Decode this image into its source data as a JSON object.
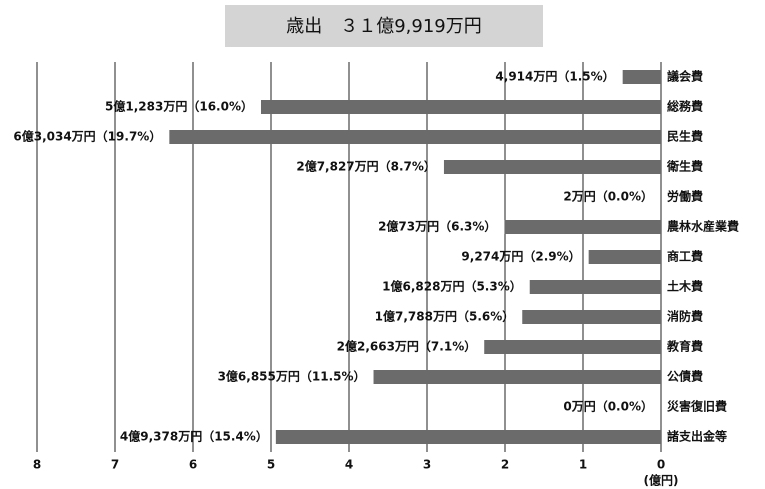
{
  "chart_data": {
    "type": "bar",
    "orientation": "horizontal",
    "title": "歳出　３１億9,919万円",
    "x_label": "(億円)",
    "categories": [
      "議会費",
      "総務費",
      "民生費",
      "衛生費",
      "労働費",
      "農林水産業費",
      "商工費",
      "土木費",
      "消防費",
      "教育費",
      "公債費",
      "災害復旧費",
      "諸支出金等"
    ],
    "values": [
      0.4914,
      5.1283,
      6.3034,
      2.7827,
      0.0002,
      2.0073,
      0.9274,
      1.6828,
      1.7788,
      2.2663,
      3.6855,
      0,
      4.9378
    ],
    "value_labels": [
      "4,914万円（1.5%）",
      "5億1,283万円（16.0%）",
      "6億3,034万円（19.7%）",
      "2億7,827万円（8.7%）",
      "2万円（0.0%）",
      "2億73万円（6.3%）",
      "9,274万円（2.9%）",
      "1億6,828万円（5.3%）",
      "1億7,788万円（5.6%）",
      "2億2,663万円（7.1%）",
      "3億6,855万円（11.5%）",
      "0万円（0.0%）",
      "4億9,378万円（15.4%）"
    ],
    "color": "#6b6b6b",
    "xlim": [
      8,
      0
    ],
    "xticks": [
      8,
      7,
      6,
      5,
      4,
      3,
      2,
      1,
      0
    ],
    "grid": true
  }
}
